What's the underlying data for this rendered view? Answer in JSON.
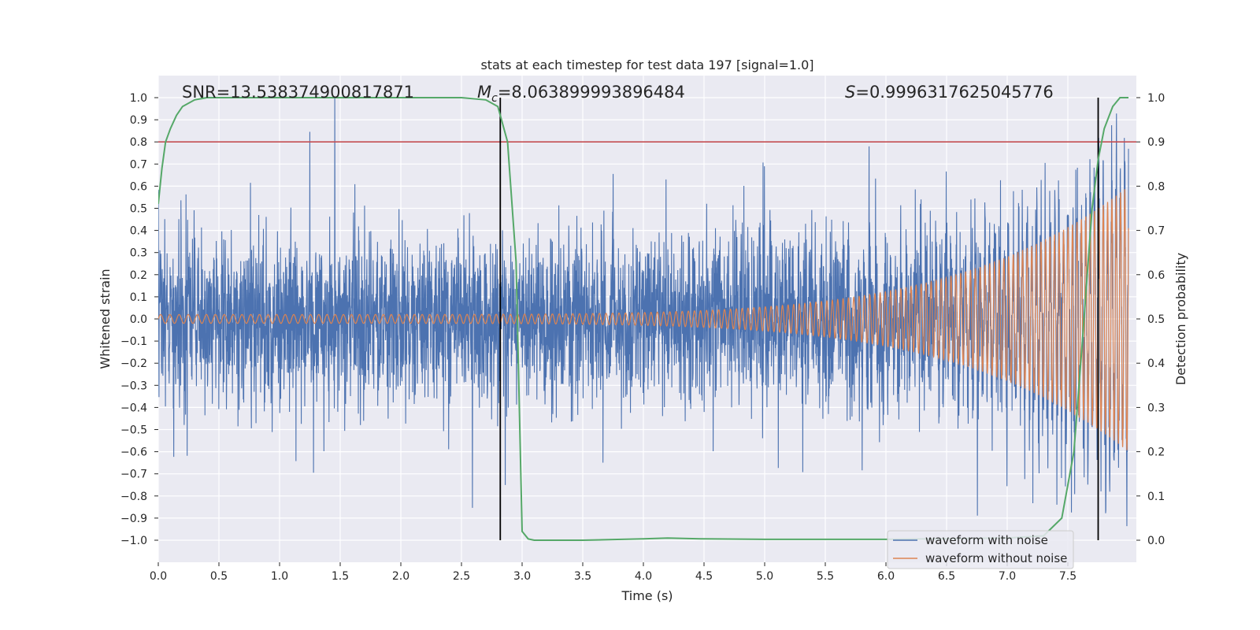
{
  "chart_data": {
    "type": "line",
    "title": "stats at each timestep for test data 197 [signal=1.0]",
    "xlabel": "Time (s)",
    "ylabel": "Whitened strain",
    "y2label": "Detection probability",
    "xlim": [
      0.0,
      8.0
    ],
    "ylim": [
      -1.1,
      1.1
    ],
    "y2lim": [
      -0.05,
      1.05
    ],
    "x_ticks": [
      0.0,
      0.5,
      1.0,
      1.5,
      2.0,
      2.5,
      3.0,
      3.5,
      4.0,
      4.5,
      5.0,
      5.5,
      6.0,
      6.5,
      7.0,
      7.5
    ],
    "x_tick_labels": [
      "0.0",
      "0.5",
      "1.0",
      "1.5",
      "2.0",
      "2.5",
      "3.0",
      "3.5",
      "4.0",
      "4.5",
      "5.0",
      "5.5",
      "6.0",
      "6.5",
      "7.0",
      "7.5"
    ],
    "y_ticks": [
      -1.0,
      -0.9,
      -0.8,
      -0.7,
      -0.6,
      -0.5,
      -0.4,
      -0.3,
      -0.2,
      -0.1,
      0.0,
      0.1,
      0.2,
      0.3,
      0.4,
      0.5,
      0.6,
      0.7,
      0.8,
      0.9,
      1.0
    ],
    "y_tick_labels": [
      "−1.0",
      "−0.9",
      "−0.8",
      "−0.7",
      "−0.6",
      "−0.5",
      "−0.4",
      "−0.3",
      "−0.2",
      "−0.1",
      "0.0",
      "0.1",
      "0.2",
      "0.3",
      "0.4",
      "0.5",
      "0.6",
      "0.7",
      "0.8",
      "0.9",
      "1.0"
    ],
    "y2_ticks": [
      0.0,
      0.1,
      0.2,
      0.3,
      0.4,
      0.5,
      0.6,
      0.7,
      0.8,
      0.9,
      1.0
    ],
    "y2_tick_labels": [
      "0.0",
      "0.1",
      "0.2",
      "0.3",
      "0.4",
      "0.5",
      "0.6",
      "0.7",
      "0.8",
      "0.9",
      "1.0"
    ],
    "grid": true,
    "legend_position": "bottom-right",
    "annotations": {
      "snr": "SNR=13.538374900817871",
      "mc_symbol": "M",
      "mc_sub": "c",
      "mc_value": "=8.063899993896484",
      "s_symbol": "S",
      "s_value": "=0.9996317625045776"
    },
    "threshold": {
      "value": 0.8,
      "color": "#c44e52"
    },
    "vertical_markers": [
      2.82,
      7.75
    ],
    "series": [
      {
        "name": "waveform with noise",
        "color": "#4c72b0",
        "kind": "noise",
        "x_range": [
          0.0,
          8.0
        ],
        "envelope": {
          "typical_peak": 0.55,
          "max_observed": 1.0,
          "min_observed": -0.96
        }
      },
      {
        "name": "waveform without noise",
        "color": "#dd8452",
        "kind": "chirp",
        "x_range": [
          0.0,
          8.0
        ],
        "amplitude_start": 0.02,
        "amplitude_end": 0.6
      },
      {
        "name": "detection probability",
        "color": "#55a868",
        "axis": "y2",
        "x": [
          0.0,
          0.03,
          0.06,
          0.1,
          0.15,
          0.2,
          0.3,
          0.4,
          0.5,
          1.0,
          1.5,
          2.0,
          2.5,
          2.7,
          2.8,
          2.88,
          2.95,
          3.0,
          3.05,
          3.1,
          3.5,
          4.0,
          4.2,
          4.5,
          5.0,
          6.0,
          7.0,
          7.3,
          7.45,
          7.55,
          7.62,
          7.7,
          7.75,
          7.8,
          7.87,
          7.93,
          8.0
        ],
        "y": [
          0.76,
          0.84,
          0.9,
          0.93,
          0.96,
          0.98,
          0.995,
          1.0,
          1.0,
          1.0,
          1.0,
          1.0,
          1.0,
          0.995,
          0.98,
          0.9,
          0.63,
          0.02,
          0.003,
          0.0,
          0.0,
          0.003,
          0.005,
          0.003,
          0.002,
          0.002,
          0.005,
          0.01,
          0.05,
          0.2,
          0.45,
          0.75,
          0.86,
          0.93,
          0.98,
          1.0,
          1.0
        ]
      }
    ]
  }
}
